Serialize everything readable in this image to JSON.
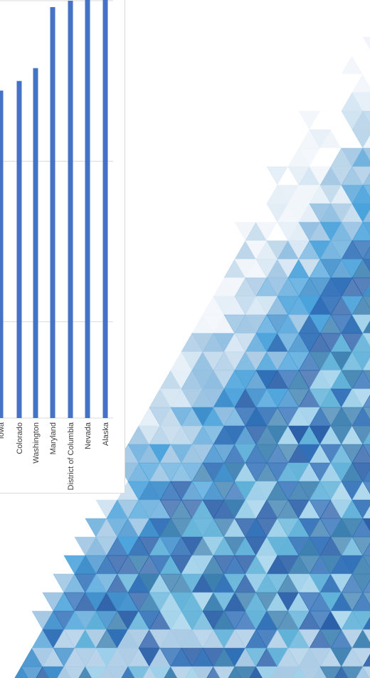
{
  "colors": {
    "bar": "#4472c4",
    "gridline": "#d9d9d9",
    "tick_text": "#404040",
    "panel_border": "#d9d9d9",
    "decoration_palette": [
      "#ffffff",
      "#f0f5fa",
      "#e2edf6",
      "#d0e3f1",
      "#bcd6ea",
      "#a7c9e4",
      "#8fbde0",
      "#6fb1de",
      "#4aa2db",
      "#3f8fcc",
      "#2f6fb7",
      "#2a5fa8",
      "#3b7fb0",
      "#5eb0d8",
      "#9ccfe9",
      "#c5d8e8"
    ]
  },
  "decoration": "geometric-triangle-mosaic",
  "chart_data": {
    "type": "bar",
    "orientation": "vertical-rotated",
    "title": "",
    "xlabel": "",
    "ylabel": "",
    "categories": [
      "Iowa",
      "Colorado",
      "Washington",
      "Maryland",
      "District of Columbia",
      "Nevada",
      "Alaska"
    ],
    "values": [
      102,
      105,
      109,
      128,
      130,
      131,
      132
    ],
    "ylim": [
      0,
      130
    ],
    "gridlines": [
      30,
      80,
      130
    ],
    "grid": true,
    "legend": "none"
  }
}
